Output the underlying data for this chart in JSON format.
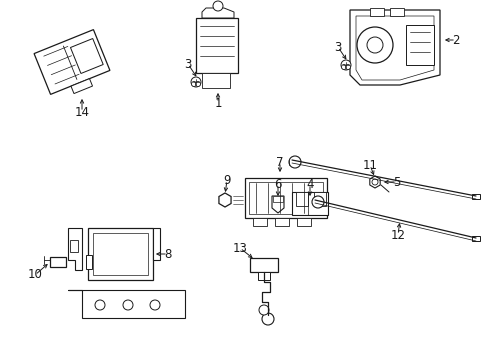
{
  "bg_color": "#ffffff",
  "line_color": "#1a1a1a",
  "lw": 0.9,
  "fs": 8.5,
  "parts": [
    "1",
    "2",
    "3",
    "3",
    "4",
    "5",
    "6",
    "7",
    "8",
    "9",
    "10",
    "11",
    "12",
    "13",
    "14"
  ]
}
